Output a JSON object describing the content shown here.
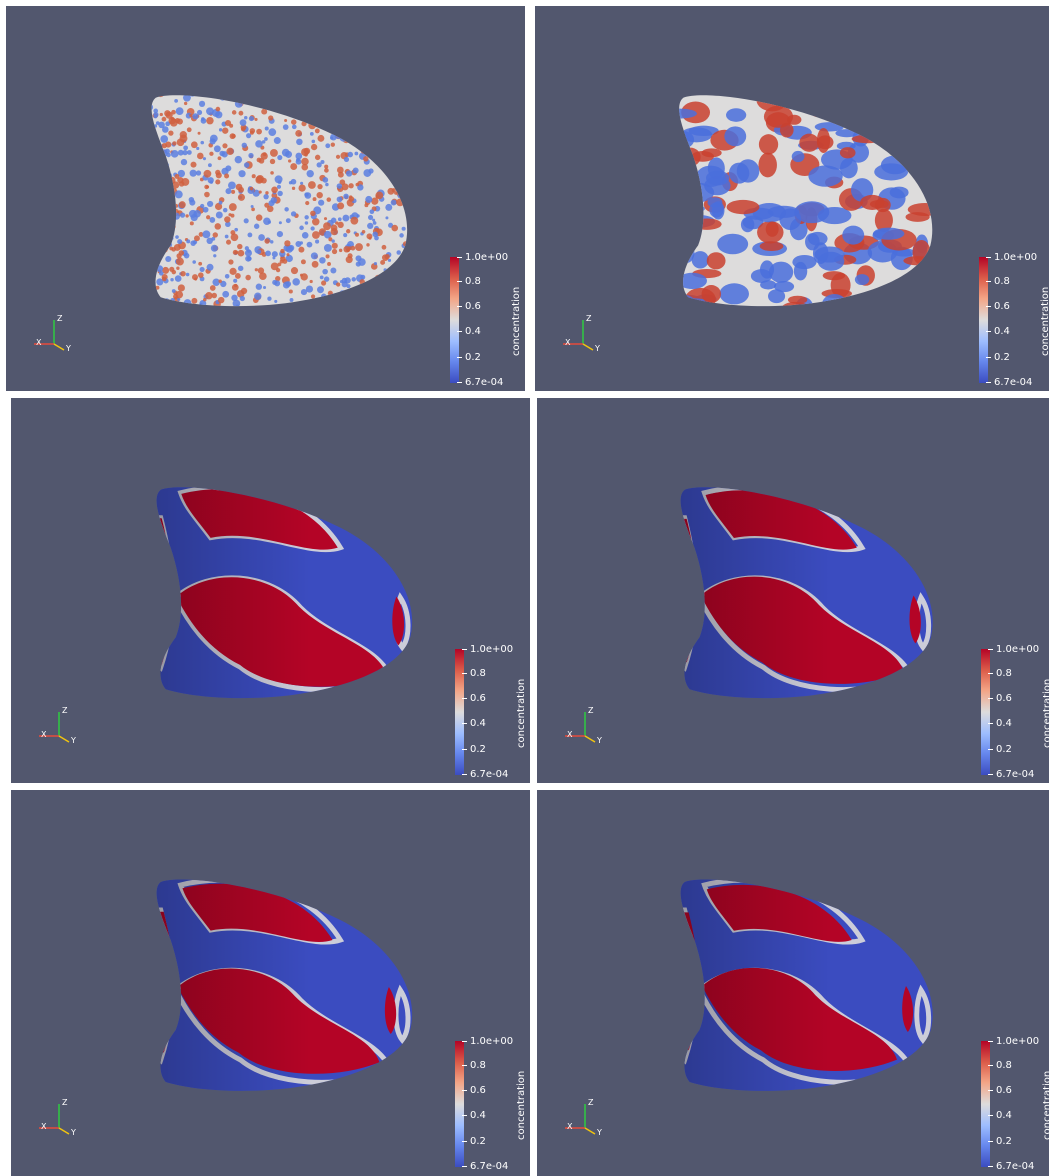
{
  "colorbar": {
    "title": "concentration",
    "ticks": [
      "1.0e+00",
      "0.8",
      "0.6",
      "0.4",
      "0.2",
      "6.7e-04"
    ],
    "colors": [
      "#b40426",
      "#dddcdc",
      "#3b4cc0"
    ]
  },
  "axes": {
    "x": "X",
    "y": "Y",
    "z": "Z"
  },
  "panels": [
    {
      "pattern": "fine-noise"
    },
    {
      "pattern": "coarse-noise"
    },
    {
      "pattern": "domains-1"
    },
    {
      "pattern": "domains-2"
    },
    {
      "pattern": "domains-3"
    },
    {
      "pattern": "domains-4"
    }
  ]
}
